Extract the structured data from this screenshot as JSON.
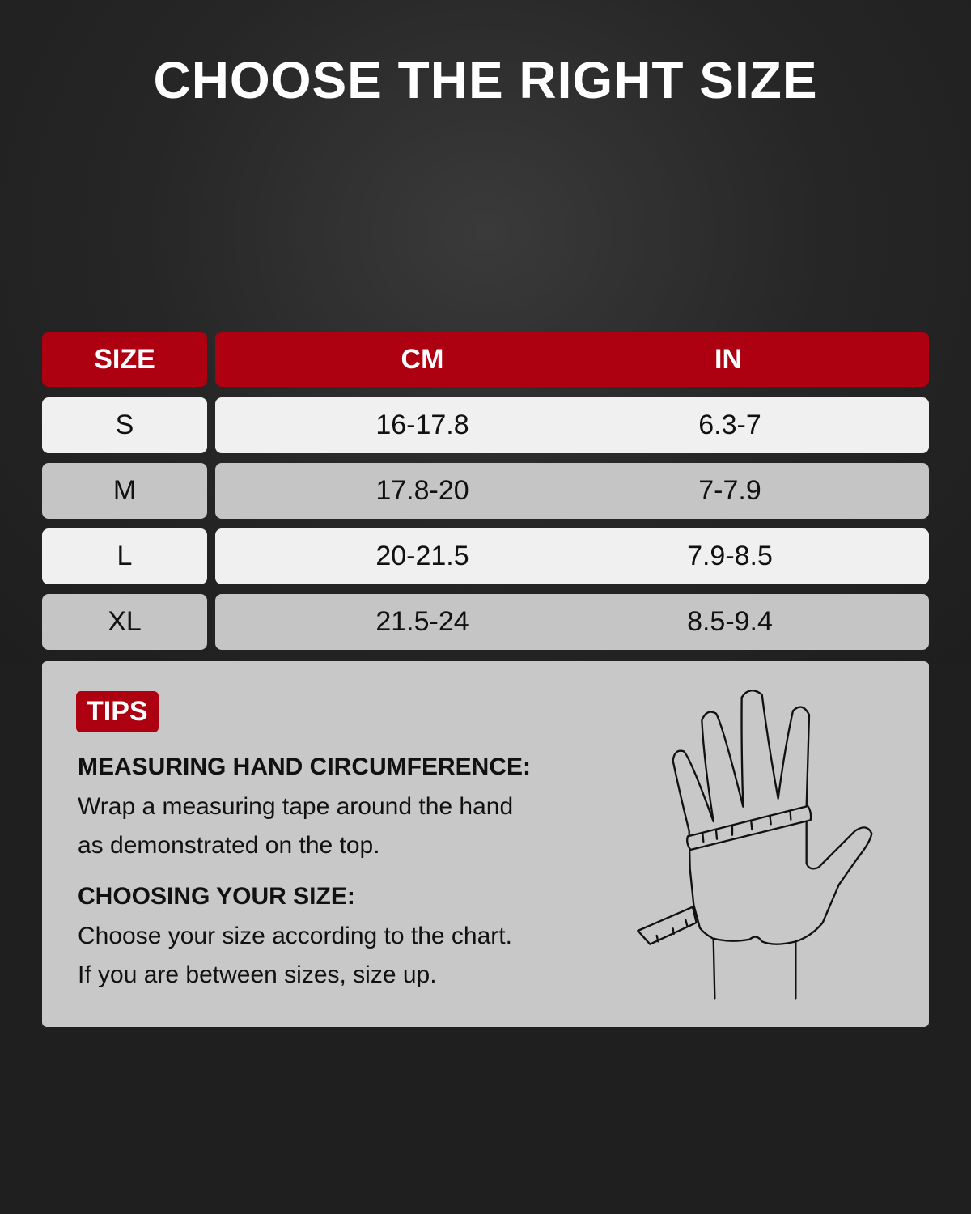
{
  "title": "CHOOSE THE RIGHT SIZE",
  "table": {
    "headers": [
      "SIZE",
      "CM",
      "IN"
    ],
    "rows": [
      {
        "size": "S",
        "cm": "16-17.8",
        "in": "6.3-7"
      },
      {
        "size": "M",
        "cm": "17.8-20",
        "in": "7-7.9"
      },
      {
        "size": "L",
        "cm": "20-21.5",
        "in": "7.9-8.5"
      },
      {
        "size": "XL",
        "cm": "21.5-24",
        "in": "8.5-9.4"
      }
    ]
  },
  "tips": {
    "badge": "TIPS",
    "heading1": "MEASURING HAND CIRCUMFERENCE:",
    "text1a": "Wrap a measuring tape around the hand",
    "text1b": "as demonstrated on the top.",
    "heading2": "CHOOSING YOUR SIZE:",
    "text2a": "Choose your size according to the chart.",
    "text2b": "If you are between sizes, size up.",
    "illustration": "hand-measuring-tape-icon"
  },
  "colors": {
    "accent": "#ad0010",
    "row_light": "#f0f0f0",
    "row_dark": "#c5c5c5",
    "background": "#1f1f1f"
  }
}
